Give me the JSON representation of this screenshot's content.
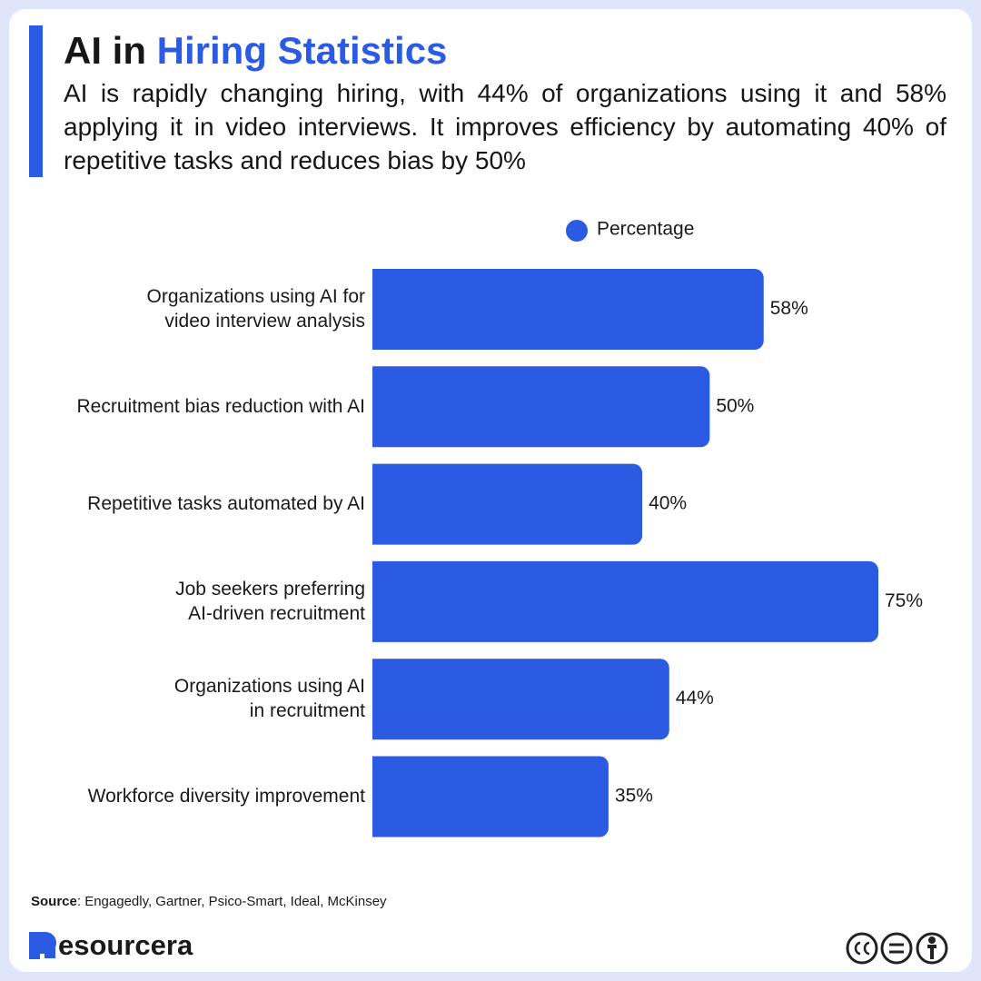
{
  "header": {
    "title_prefix": "AI in",
    "title_highlight": "Hiring Statistics",
    "subtitle": "AI is rapidly changing hiring, with 44% of organizations using it and 58% applying it in video interviews. It improves efficiency by automating 40% of repetitive tasks and reduces bias by 50%"
  },
  "chart_data": {
    "type": "hbar",
    "categories": [
      "Organizations using AI for\nvideo interview analysis",
      "Recruitment bias reduction with AI",
      "Repetitive tasks automated by AI",
      "Job seekers preferring\nAI-driven recruitment",
      "Organizations using AI\nin recruitment",
      "Workforce diversity improvement"
    ],
    "series": [
      {
        "name": "Percentage",
        "color": "#2c5be3",
        "values": [
          58,
          50,
          40,
          75,
          44,
          35
        ],
        "value_labels": [
          "58%",
          "50%",
          "40%",
          "75%",
          "44%",
          "35%"
        ]
      }
    ],
    "xlim": [
      0,
      75
    ],
    "legend": "top"
  },
  "footer": {
    "source_label": "Source",
    "source_text": ": Engagedly, Gartner, Psico-Smart, Ideal, McKinsey",
    "brand": "esourcera"
  }
}
